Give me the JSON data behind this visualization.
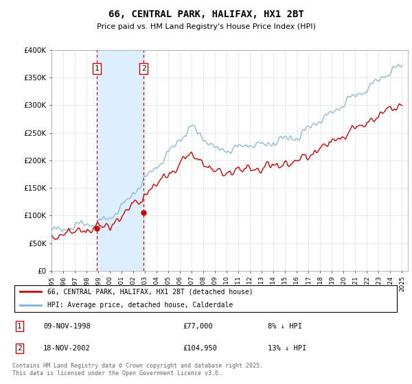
{
  "title": "66, CENTRAL PARK, HALIFAX, HX1 2BT",
  "subtitle": "Price paid vs. HM Land Registry's House Price Index (HPI)",
  "ylim": [
    0,
    400000
  ],
  "yticks": [
    0,
    50000,
    100000,
    150000,
    200000,
    250000,
    300000,
    350000,
    400000
  ],
  "ytick_labels": [
    "£0",
    "£50K",
    "£100K",
    "£150K",
    "£200K",
    "£250K",
    "£300K",
    "£350K",
    "£400K"
  ],
  "xlim_start": 1995.0,
  "xlim_end": 2025.5,
  "sale1_x": 1998.86,
  "sale1_y": 77000,
  "sale2_x": 2002.88,
  "sale2_y": 104950,
  "sale1_label": "1",
  "sale2_label": "2",
  "sale1_date": "09-NOV-1998",
  "sale1_price": "£77,000",
  "sale1_hpi": "8% ↓ HPI",
  "sale2_date": "18-NOV-2002",
  "sale2_price": "£104,950",
  "sale2_hpi": "13% ↓ HPI",
  "legend_line1": "66, CENTRAL PARK, HALIFAX, HX1 2BT (detached house)",
  "legend_line2": "HPI: Average price, detached house, Calderdale",
  "footnote": "Contains HM Land Registry data © Crown copyright and database right 2025.\nThis data is licensed under the Open Government Licence v3.0.",
  "highlight_fill": "#ddeeff",
  "line_red": "#cc0000",
  "line_blue": "#7fb3d3",
  "grid_color": "#dddddd",
  "background": "#ffffff"
}
